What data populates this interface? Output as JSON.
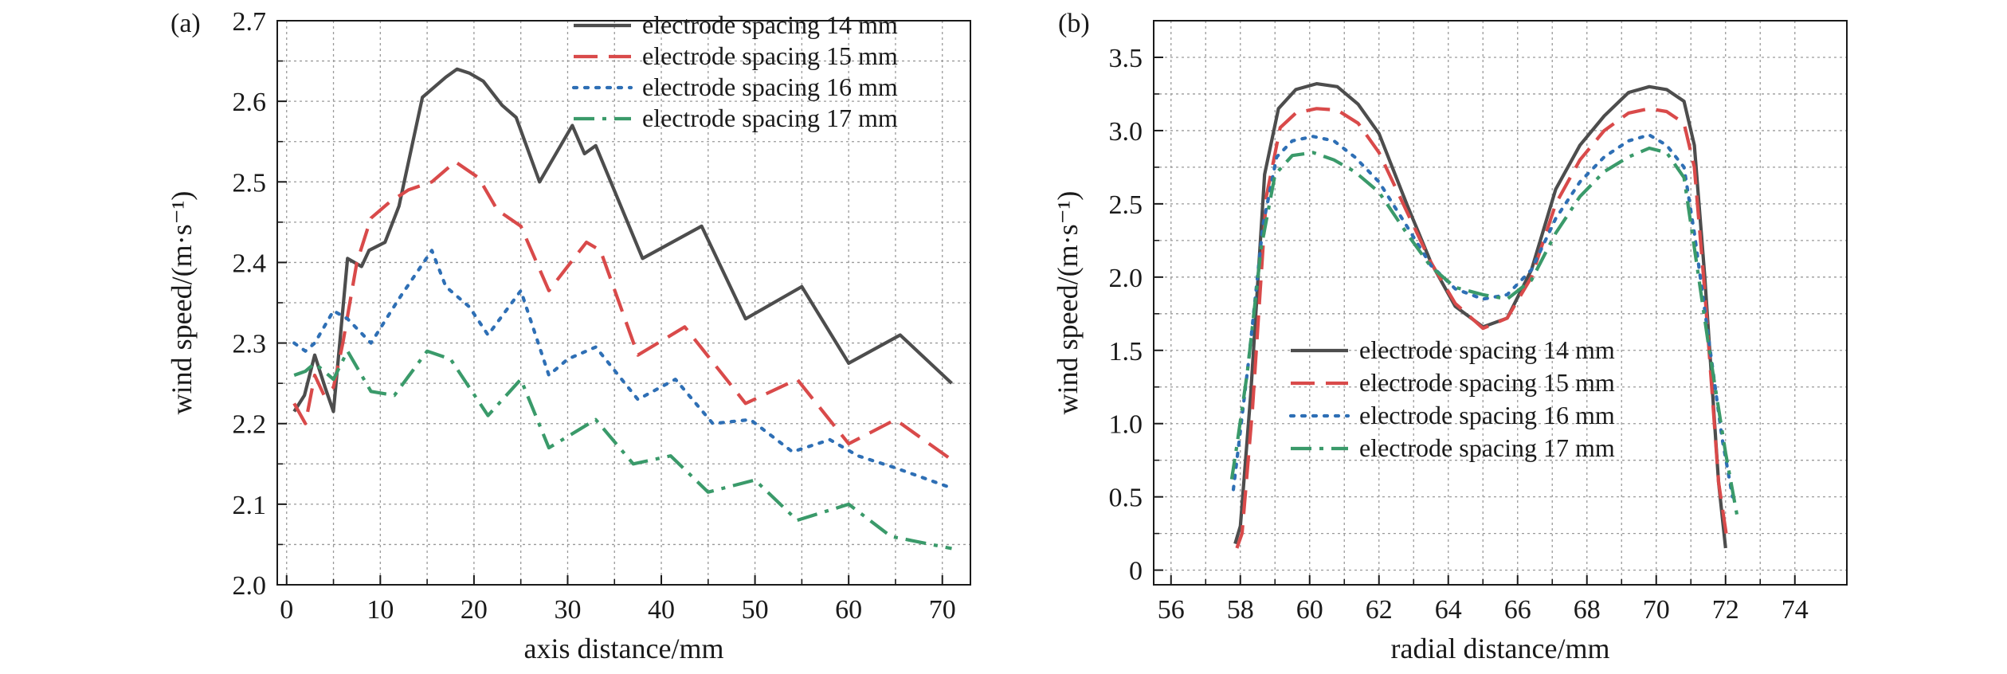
{
  "chart_data": [
    {
      "type": "line",
      "panel_label": "(a)",
      "xlabel": "axis distance/mm",
      "ylabel": "wind speed/(m·s⁻¹)",
      "xlim": [
        -1,
        73
      ],
      "ylim": [
        2.0,
        2.7
      ],
      "xticks": [
        0,
        10,
        20,
        30,
        40,
        50,
        60,
        70
      ],
      "yticks": [
        2.0,
        2.1,
        2.2,
        2.3,
        2.4,
        2.5,
        2.6,
        2.7
      ],
      "grid": true,
      "legend": "top-right",
      "series": [
        {
          "name": "electrode spacing 14 mm",
          "color": "#4d4d4d",
          "dash": "solid",
          "x": [
            0.8,
            1.9,
            3.0,
            4.1,
            5.0,
            6.5,
            8.0,
            8.8,
            10.5,
            12.0,
            14.5,
            17.0,
            18.2,
            19.5,
            21.0,
            23.0,
            24.5,
            27.0,
            30.5,
            31.8,
            33.0,
            38.0,
            43.5,
            44.3,
            49.0,
            55.0,
            60.0,
            65.5,
            71.0
          ],
          "y": [
            2.215,
            2.235,
            2.285,
            2.245,
            2.215,
            2.405,
            2.395,
            2.415,
            2.425,
            2.47,
            2.605,
            2.63,
            2.64,
            2.635,
            2.625,
            2.595,
            2.58,
            2.5,
            2.57,
            2.535,
            2.545,
            2.405,
            2.44,
            2.445,
            2.33,
            2.37,
            2.275,
            2.31,
            2.25
          ]
        },
        {
          "name": "electrode spacing 15 mm",
          "color": "#d94a4a",
          "dash": "long",
          "x": [
            0.8,
            2.0,
            3.0,
            4.0,
            5.0,
            6.0,
            7.5,
            9.0,
            11.0,
            13.0,
            15.5,
            18.0,
            20.5,
            22.5,
            25.0,
            28.0,
            32.0,
            33.5,
            37.5,
            42.5,
            49.0,
            54.5,
            60.0,
            65.0,
            71.0
          ],
          "y": [
            2.225,
            2.2,
            2.26,
            2.235,
            2.245,
            2.3,
            2.4,
            2.455,
            2.475,
            2.49,
            2.5,
            2.525,
            2.505,
            2.465,
            2.445,
            2.365,
            2.425,
            2.415,
            2.285,
            2.32,
            2.225,
            2.255,
            2.175,
            2.205,
            2.155
          ]
        },
        {
          "name": "electrode spacing 16 mm",
          "color": "#2e6fb5",
          "dash": "dot",
          "x": [
            0.8,
            2.0,
            3.0,
            4.0,
            5.0,
            6.5,
            9.0,
            12.0,
            15.5,
            17.0,
            19.5,
            21.5,
            25.0,
            28.0,
            30.0,
            33.0,
            37.5,
            41.5,
            45.5,
            49.5,
            54.0,
            58.0,
            61.0,
            65.0,
            71.0
          ],
          "y": [
            2.3,
            2.29,
            2.3,
            2.32,
            2.34,
            2.33,
            2.3,
            2.355,
            2.415,
            2.37,
            2.345,
            2.31,
            2.365,
            2.26,
            2.28,
            2.295,
            2.23,
            2.255,
            2.2,
            2.205,
            2.165,
            2.18,
            2.16,
            2.145,
            2.12
          ]
        },
        {
          "name": "electrode spacing 17 mm",
          "color": "#3a9a6a",
          "dash": "dashdot",
          "x": [
            0.8,
            2.0,
            3.0,
            4.0,
            5.0,
            6.5,
            9.0,
            11.5,
            15.0,
            17.5,
            21.5,
            25.0,
            28.0,
            33.0,
            37.0,
            41.0,
            45.0,
            50.0,
            54.5,
            60.0,
            64.5,
            71.0
          ],
          "y": [
            2.26,
            2.265,
            2.275,
            2.265,
            2.255,
            2.29,
            2.24,
            2.235,
            2.29,
            2.28,
            2.21,
            2.255,
            2.17,
            2.205,
            2.15,
            2.16,
            2.115,
            2.13,
            2.08,
            2.1,
            2.06,
            2.045
          ]
        }
      ]
    },
    {
      "type": "line",
      "panel_label": "(b)",
      "xlabel": "radial distance/mm",
      "ylabel": "wind speed/(m·s⁻¹)",
      "xlim": [
        55.5,
        75.5
      ],
      "ylim": [
        -0.1,
        3.75
      ],
      "xticks": [
        56,
        58,
        60,
        62,
        64,
        66,
        68,
        70,
        72,
        74
      ],
      "yticks": [
        0,
        0.5,
        1.0,
        1.5,
        2.0,
        2.5,
        3.0,
        3.5
      ],
      "ytick_labels": [
        "0",
        "0.5",
        "1.0",
        "1.5",
        "2.0",
        "2.5",
        "3.0",
        "3.5"
      ],
      "grid": true,
      "legend": "center-left",
      "series": [
        {
          "name": "electrode spacing 14 mm",
          "color": "#4d4d4d",
          "dash": "solid",
          "x": [
            57.85,
            58.0,
            58.3,
            58.7,
            59.1,
            59.6,
            60.2,
            60.8,
            61.4,
            62.0,
            62.8,
            63.5,
            64.2,
            65.0,
            65.7,
            66.4,
            67.1,
            67.8,
            68.5,
            69.2,
            69.8,
            70.3,
            70.8,
            71.1,
            71.4,
            71.8,
            72.0
          ],
          "y": [
            0.18,
            0.3,
            1.2,
            2.7,
            3.15,
            3.28,
            3.32,
            3.3,
            3.18,
            2.98,
            2.5,
            2.1,
            1.8,
            1.66,
            1.72,
            2.05,
            2.6,
            2.9,
            3.1,
            3.26,
            3.3,
            3.28,
            3.2,
            2.9,
            2.0,
            0.6,
            0.15
          ]
        },
        {
          "name": "electrode spacing 15 mm",
          "color": "#d94a4a",
          "dash": "long",
          "x": [
            57.9,
            58.05,
            58.35,
            58.75,
            59.15,
            59.6,
            60.2,
            60.8,
            61.4,
            62.0,
            62.8,
            63.5,
            64.2,
            65.0,
            65.7,
            66.4,
            67.1,
            67.8,
            68.5,
            69.2,
            69.8,
            70.3,
            70.8,
            71.1,
            71.4,
            71.8,
            72.05
          ],
          "y": [
            0.15,
            0.25,
            1.1,
            2.55,
            3.02,
            3.12,
            3.15,
            3.14,
            3.05,
            2.85,
            2.45,
            2.1,
            1.82,
            1.65,
            1.72,
            2.0,
            2.5,
            2.8,
            3.0,
            3.12,
            3.15,
            3.13,
            3.05,
            2.75,
            1.9,
            0.6,
            0.2
          ]
        },
        {
          "name": "electrode spacing 16 mm",
          "color": "#2e6fb5",
          "dash": "dot",
          "x": [
            57.8,
            57.95,
            58.25,
            58.65,
            59.05,
            59.5,
            60.1,
            60.7,
            61.3,
            62.0,
            62.8,
            63.5,
            64.2,
            65.0,
            65.7,
            66.4,
            67.1,
            67.8,
            68.5,
            69.2,
            69.8,
            70.3,
            70.8,
            71.1,
            71.5,
            71.9,
            72.2
          ],
          "y": [
            0.55,
            0.85,
            1.45,
            2.35,
            2.82,
            2.93,
            2.96,
            2.93,
            2.82,
            2.65,
            2.35,
            2.08,
            1.92,
            1.85,
            1.88,
            2.05,
            2.4,
            2.65,
            2.82,
            2.93,
            2.97,
            2.9,
            2.75,
            2.3,
            1.6,
            0.9,
            0.5
          ]
        },
        {
          "name": "electrode spacing 17 mm",
          "color": "#3a9a6a",
          "dash": "dashdot",
          "x": [
            57.75,
            57.9,
            58.2,
            58.6,
            59.0,
            59.5,
            60.1,
            60.7,
            61.3,
            62.0,
            62.8,
            63.5,
            64.2,
            65.0,
            65.7,
            66.4,
            67.1,
            67.8,
            68.5,
            69.2,
            69.8,
            70.3,
            70.8,
            71.1,
            71.5,
            72.0,
            72.35
          ],
          "y": [
            0.62,
            0.85,
            1.35,
            2.2,
            2.7,
            2.83,
            2.85,
            2.8,
            2.72,
            2.58,
            2.3,
            2.07,
            1.93,
            1.88,
            1.85,
            1.98,
            2.3,
            2.55,
            2.72,
            2.82,
            2.88,
            2.85,
            2.68,
            2.2,
            1.55,
            0.8,
            0.35
          ]
        }
      ]
    }
  ]
}
